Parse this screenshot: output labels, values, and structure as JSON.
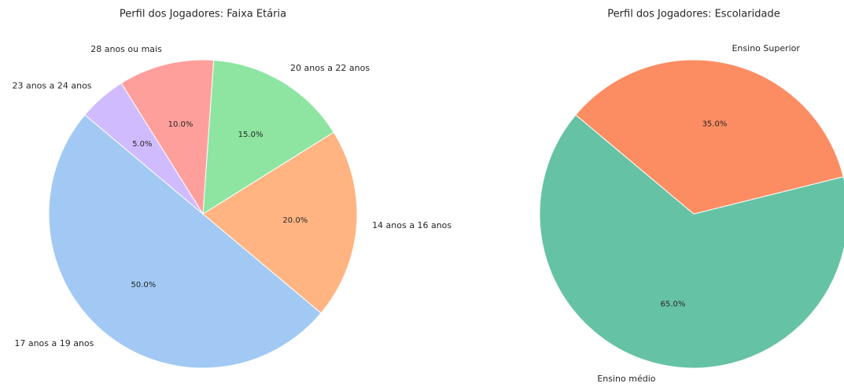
{
  "chart_data": [
    {
      "type": "pie",
      "title": "Perfil dos Jogadores: Faixa Etária",
      "categories": [
        "17 anos a 19 anos",
        "14 anos a 16 anos",
        "20 anos a 22 anos",
        "28 anos ou mais",
        "23 anos a 24 anos"
      ],
      "values": [
        50,
        20,
        15,
        10,
        5
      ],
      "value_labels": [
        "50.0%",
        "20.0%",
        "15.0%",
        "10.0%",
        "5.0%"
      ],
      "colors": [
        "#a1c9f4",
        "#ffb482",
        "#8de5a1",
        "#ff9f9b",
        "#d0bbff"
      ]
    },
    {
      "type": "pie",
      "title": "Perfil dos Jogadores: Escolaridade",
      "categories": [
        "Ensino médio",
        "Ensino Superior"
      ],
      "values": [
        65,
        35
      ],
      "value_labels": [
        "65.0%",
        "35.0%"
      ],
      "colors": [
        "#66c2a5",
        "#fc8d62"
      ]
    }
  ]
}
